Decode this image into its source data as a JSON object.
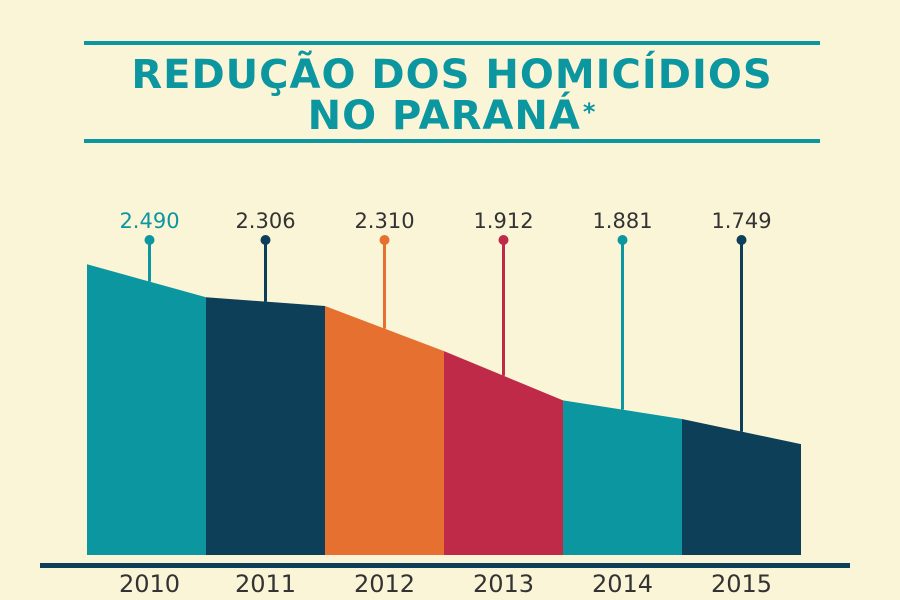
{
  "title": {
    "line1": "REDUÇÃO DOS HOMICÍDIOS",
    "line2": "NO PARANÁ",
    "asterisk": "*"
  },
  "colors": {
    "background": "#fbf5d8",
    "teal": "#0b96a0",
    "navy": "#0d3f59",
    "orange": "#e5702f",
    "crimson": "#be2a47",
    "baseline": "#0d3f59"
  },
  "chart_data": {
    "type": "area",
    "title": "REDUÇÃO DOS HOMICÍDIOS NO PARANÁ*",
    "categories": [
      "2010",
      "2011",
      "2012",
      "2013",
      "2014",
      "2015"
    ],
    "values": [
      2490,
      2306,
      2310,
      1912,
      1881,
      1749
    ],
    "value_labels": [
      "2.490",
      "2.306",
      "2.310",
      "1.912",
      "1.881",
      "1.749"
    ],
    "segment_colors": [
      "#0b96a0",
      "#0d3f59",
      "#e5702f",
      "#be2a47",
      "#0b96a0",
      "#0d3f59"
    ],
    "label_colors": [
      "#0b96a0",
      "#333333",
      "#333333",
      "#333333",
      "#333333",
      "#333333"
    ],
    "marker_colors": [
      "#0b96a0",
      "#0d3f59",
      "#e5702f",
      "#be2a47",
      "#0b96a0",
      "#0d3f59"
    ],
    "xlabel": "",
    "ylabel": "",
    "grid": false
  }
}
